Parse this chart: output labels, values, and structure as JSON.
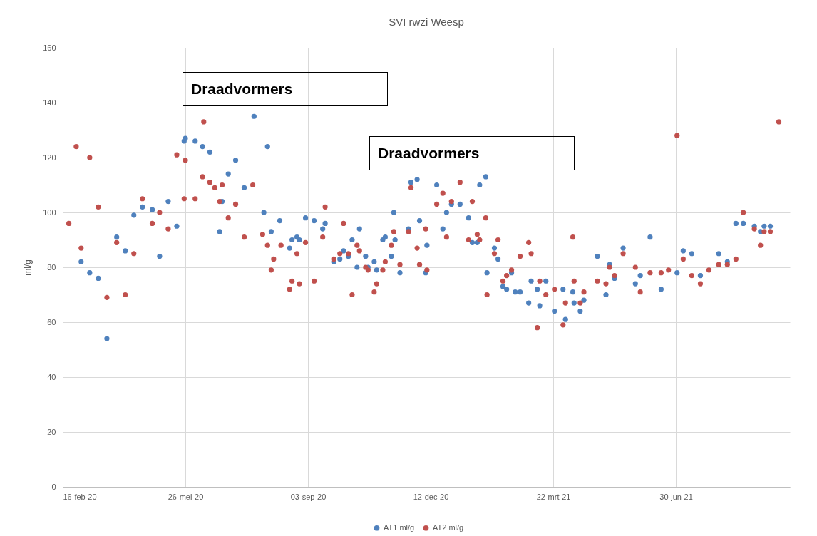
{
  "chart_data": {
    "type": "scatter",
    "title": "SVI rwzi Weesp",
    "ylabel": "ml/g",
    "marker": "circle",
    "grid": true,
    "legend": "bottom",
    "annotations": [
      "Draadvormers",
      "Draadvormers"
    ],
    "xlim": [
      "2020-02-16",
      "2021-10-01"
    ],
    "xticks": [
      {
        "value": "2020-02-16",
        "label": "16-feb-20"
      },
      {
        "value": "2020-05-26",
        "label": "26-mei-20"
      },
      {
        "value": "2020-09-03",
        "label": "03-sep-20"
      },
      {
        "value": "2020-12-12",
        "label": "12-dec-20"
      },
      {
        "value": "2021-03-22",
        "label": "22-mrt-21"
      },
      {
        "value": "2021-06-30",
        "label": "30-jun-21"
      }
    ],
    "ylim": [
      0,
      160
    ],
    "yticks": [
      0,
      20,
      40,
      60,
      80,
      100,
      120,
      140,
      160
    ],
    "series": [
      {
        "name": "AT1 ml/g",
        "color": "#4f81bd",
        "x": [
          "2020-03-02",
          "2020-03-09",
          "2020-03-16",
          "2020-03-23",
          "2020-03-31",
          "2020-04-07",
          "2020-04-14",
          "2020-04-21",
          "2020-04-29",
          "2020-05-05",
          "2020-05-12",
          "2020-05-19",
          "2020-05-25",
          "2020-05-26",
          "2020-06-03",
          "2020-06-09",
          "2020-06-15",
          "2020-06-23",
          "2020-06-25",
          "2020-06-30",
          "2020-07-06",
          "2020-07-13",
          "2020-07-21",
          "2020-07-29",
          "2020-08-01",
          "2020-08-04",
          "2020-08-11",
          "2020-08-19",
          "2020-08-21",
          "2020-08-25",
          "2020-08-27",
          "2020-09-01",
          "2020-09-08",
          "2020-09-15",
          "2020-09-17",
          "2020-09-24",
          "2020-09-29",
          "2020-10-02",
          "2020-10-06",
          "2020-10-09",
          "2020-10-13",
          "2020-10-15",
          "2020-10-20",
          "2020-10-22",
          "2020-10-27",
          "2020-10-29",
          "2020-11-03",
          "2020-11-05",
          "2020-11-10",
          "2020-11-12",
          "2020-11-13",
          "2020-11-17",
          "2020-11-24",
          "2020-11-26",
          "2020-12-01",
          "2020-12-03",
          "2020-12-08",
          "2020-12-09",
          "2020-12-17",
          "2020-12-22",
          "2020-12-25",
          "2020-12-29",
          "2021-01-05",
          "2021-01-12",
          "2021-01-15",
          "2021-01-19",
          "2021-01-21",
          "2021-01-26",
          "2021-01-27",
          "2021-02-02",
          "2021-02-05",
          "2021-02-09",
          "2021-02-12",
          "2021-02-16",
          "2021-02-19",
          "2021-02-23",
          "2021-03-02",
          "2021-03-04",
          "2021-03-09",
          "2021-03-11",
          "2021-03-16",
          "2021-03-23",
          "2021-03-30",
          "2021-04-01",
          "2021-04-07",
          "2021-04-08",
          "2021-04-13",
          "2021-04-16",
          "2021-04-27",
          "2021-05-04",
          "2021-05-07",
          "2021-05-11",
          "2021-05-18",
          "2021-05-28",
          "2021-06-01",
          "2021-06-09",
          "2021-06-18",
          "2021-07-01",
          "2021-07-06",
          "2021-07-13",
          "2021-07-20",
          "2021-08-04",
          "2021-08-11",
          "2021-08-18",
          "2021-08-24",
          "2021-09-02",
          "2021-09-07",
          "2021-09-10",
          "2021-09-15"
        ],
        "values": [
          82,
          78,
          76,
          54,
          91,
          86,
          99,
          102,
          101,
          84,
          104,
          95,
          126,
          127,
          126,
          124,
          122,
          93,
          104,
          114,
          119,
          109,
          135,
          100,
          124,
          93,
          97,
          87,
          90,
          91,
          90,
          98,
          97,
          94,
          96,
          82,
          83,
          86,
          84,
          90,
          80,
          94,
          84,
          80,
          82,
          79,
          90,
          91,
          84,
          100,
          90,
          78,
          94,
          111,
          112,
          97,
          78,
          88,
          110,
          94,
          100,
          103,
          103,
          98,
          89,
          89,
          110,
          113,
          78,
          87,
          83,
          73,
          72,
          78,
          71,
          71,
          67,
          75,
          72,
          66,
          75,
          64,
          72,
          61,
          71,
          67,
          64,
          68,
          84,
          70,
          81,
          76,
          87,
          74,
          77,
          91,
          72,
          78,
          86,
          85,
          77,
          85,
          82,
          96,
          96,
          95,
          93,
          95,
          95
        ]
      },
      {
        "name": "AT2 ml/g",
        "color": "#c0504d",
        "x": [
          "2020-02-21",
          "2020-02-27",
          "2020-03-02",
          "2020-03-09",
          "2020-03-16",
          "2020-03-23",
          "2020-03-31",
          "2020-04-07",
          "2020-04-14",
          "2020-04-21",
          "2020-04-29",
          "2020-05-05",
          "2020-05-12",
          "2020-05-19",
          "2020-05-25",
          "2020-05-26",
          "2020-06-03",
          "2020-06-09",
          "2020-06-10",
          "2020-06-15",
          "2020-06-19",
          "2020-06-23",
          "2020-06-25",
          "2020-06-30",
          "2020-07-06",
          "2020-07-13",
          "2020-07-20",
          "2020-07-28",
          "2020-08-01",
          "2020-08-04",
          "2020-08-06",
          "2020-08-12",
          "2020-08-19",
          "2020-08-21",
          "2020-08-25",
          "2020-08-27",
          "2020-09-01",
          "2020-09-08",
          "2020-09-15",
          "2020-09-17",
          "2020-09-24",
          "2020-09-29",
          "2020-10-02",
          "2020-10-06",
          "2020-10-09",
          "2020-10-13",
          "2020-10-15",
          "2020-10-20",
          "2020-10-22",
          "2020-10-27",
          "2020-10-29",
          "2020-11-03",
          "2020-11-05",
          "2020-11-10",
          "2020-11-12",
          "2020-11-17",
          "2020-11-24",
          "2020-11-26",
          "2020-12-01",
          "2020-12-03",
          "2020-12-08",
          "2020-12-09",
          "2020-12-17",
          "2020-12-22",
          "2020-12-25",
          "2020-12-29",
          "2021-01-05",
          "2021-01-12",
          "2021-01-15",
          "2021-01-19",
          "2021-01-21",
          "2021-01-26",
          "2021-01-27",
          "2021-02-02",
          "2021-02-05",
          "2021-02-09",
          "2021-02-12",
          "2021-02-16",
          "2021-02-23",
          "2021-03-02",
          "2021-03-04",
          "2021-03-09",
          "2021-03-11",
          "2021-03-16",
          "2021-03-23",
          "2021-03-30",
          "2021-04-01",
          "2021-04-07",
          "2021-04-08",
          "2021-04-13",
          "2021-04-16",
          "2021-04-27",
          "2021-05-04",
          "2021-05-07",
          "2021-05-11",
          "2021-05-18",
          "2021-05-28",
          "2021-06-01",
          "2021-06-09",
          "2021-06-18",
          "2021-06-24",
          "2021-07-01",
          "2021-07-06",
          "2021-07-13",
          "2021-07-20",
          "2021-07-27",
          "2021-08-04",
          "2021-08-11",
          "2021-08-18",
          "2021-08-24",
          "2021-09-02",
          "2021-09-07",
          "2021-09-10",
          "2021-09-15",
          "2021-09-22"
        ],
        "values": [
          96,
          124,
          87,
          120,
          102,
          69,
          89,
          70,
          85,
          105,
          96,
          100,
          94,
          121,
          105,
          119,
          105,
          113,
          133,
          111,
          109,
          104,
          110,
          98,
          103,
          91,
          110,
          92,
          88,
          79,
          83,
          88,
          72,
          75,
          85,
          74,
          89,
          75,
          91,
          102,
          83,
          85,
          96,
          85,
          70,
          88,
          86,
          80,
          79,
          71,
          74,
          79,
          82,
          88,
          93,
          81,
          93,
          109,
          87,
          81,
          94,
          79,
          103,
          107,
          91,
          104,
          111,
          90,
          104,
          92,
          90,
          98,
          70,
          85,
          90,
          75,
          77,
          79,
          84,
          89,
          85,
          58,
          75,
          70,
          72,
          59,
          67,
          91,
          75,
          67,
          71,
          75,
          74,
          80,
          77,
          85,
          80,
          71,
          78,
          78,
          79,
          128,
          83,
          77,
          74,
          79,
          81,
          81,
          83,
          100,
          94,
          88,
          93,
          93,
          133
        ]
      }
    ]
  }
}
